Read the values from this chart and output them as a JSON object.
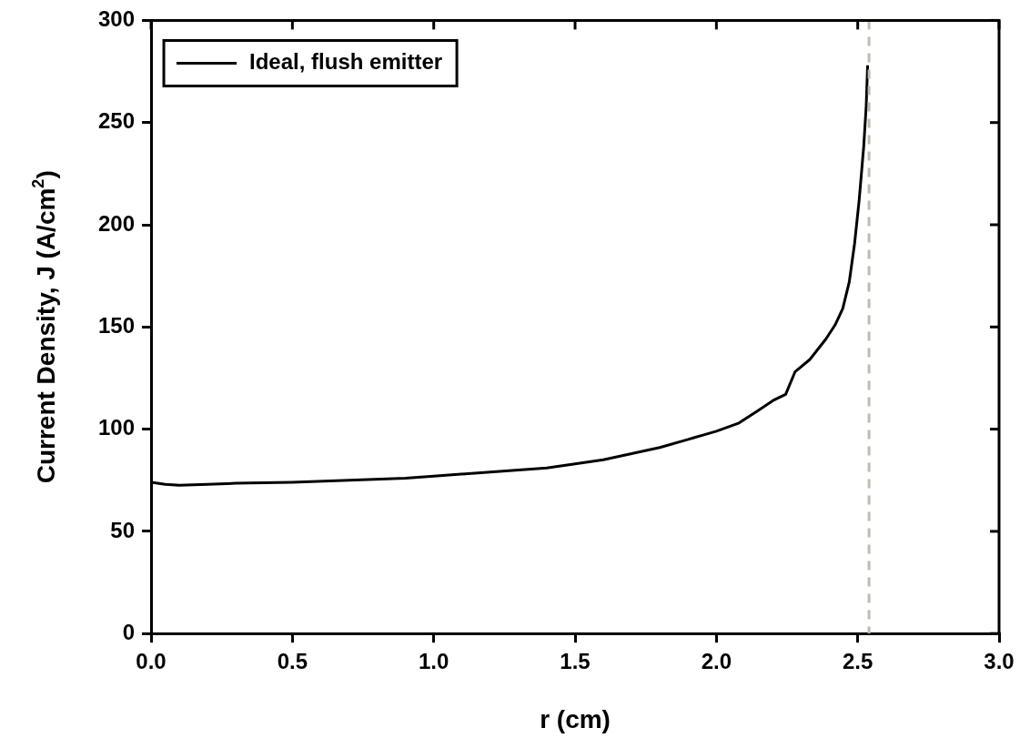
{
  "chart_data": {
    "type": "line",
    "xlabel": "r (cm)",
    "ylabel": "Current Density, J (A/cm$^{2}$)",
    "xlim": [
      0,
      3
    ],
    "xticks": [
      {
        "value": 0,
        "label": "0.0"
      },
      {
        "value": 0.5,
        "label": "0.5"
      },
      {
        "value": 1,
        "label": "1.0"
      },
      {
        "value": 1.5,
        "label": "1.5"
      },
      {
        "value": 2,
        "label": "2.0"
      },
      {
        "value": 2.5,
        "label": "2.5"
      },
      {
        "value": 3,
        "label": "3.0"
      }
    ],
    "ylim": [
      0,
      300
    ],
    "yticks": [
      0,
      50,
      100,
      150,
      200,
      250,
      300
    ],
    "grid": false,
    "legend": "top left",
    "marker": "none",
    "line_style": "solid",
    "series": [
      {
        "name": "Ideal, flush emitter",
        "color": "#000000",
        "x": [
          0,
          0.05,
          0.1,
          0.2,
          0.3,
          0.5,
          0.7,
          0.9,
          1.0,
          1.2,
          1.4,
          1.5,
          1.6,
          1.7,
          1.8,
          1.9,
          1.95,
          2.0,
          2.08,
          2.146,
          2.2,
          2.245,
          2.278,
          2.33,
          2.387,
          2.42,
          2.447,
          2.47,
          2.489,
          2.505,
          2.521,
          2.53,
          2.535
        ],
        "values": [
          74,
          73,
          72.5,
          73,
          73.5,
          74,
          75,
          76,
          77,
          79,
          81,
          83,
          85,
          88,
          91,
          95,
          97,
          99,
          103,
          109,
          114,
          117,
          128,
          134,
          144,
          151,
          159,
          172,
          191,
          212,
          238,
          258,
          278
        ]
      }
    ],
    "ref_lines": [
      {
        "axis": "x",
        "value": 2.54,
        "color": "#bdbdb0",
        "line_style": "dashed"
      }
    ]
  }
}
